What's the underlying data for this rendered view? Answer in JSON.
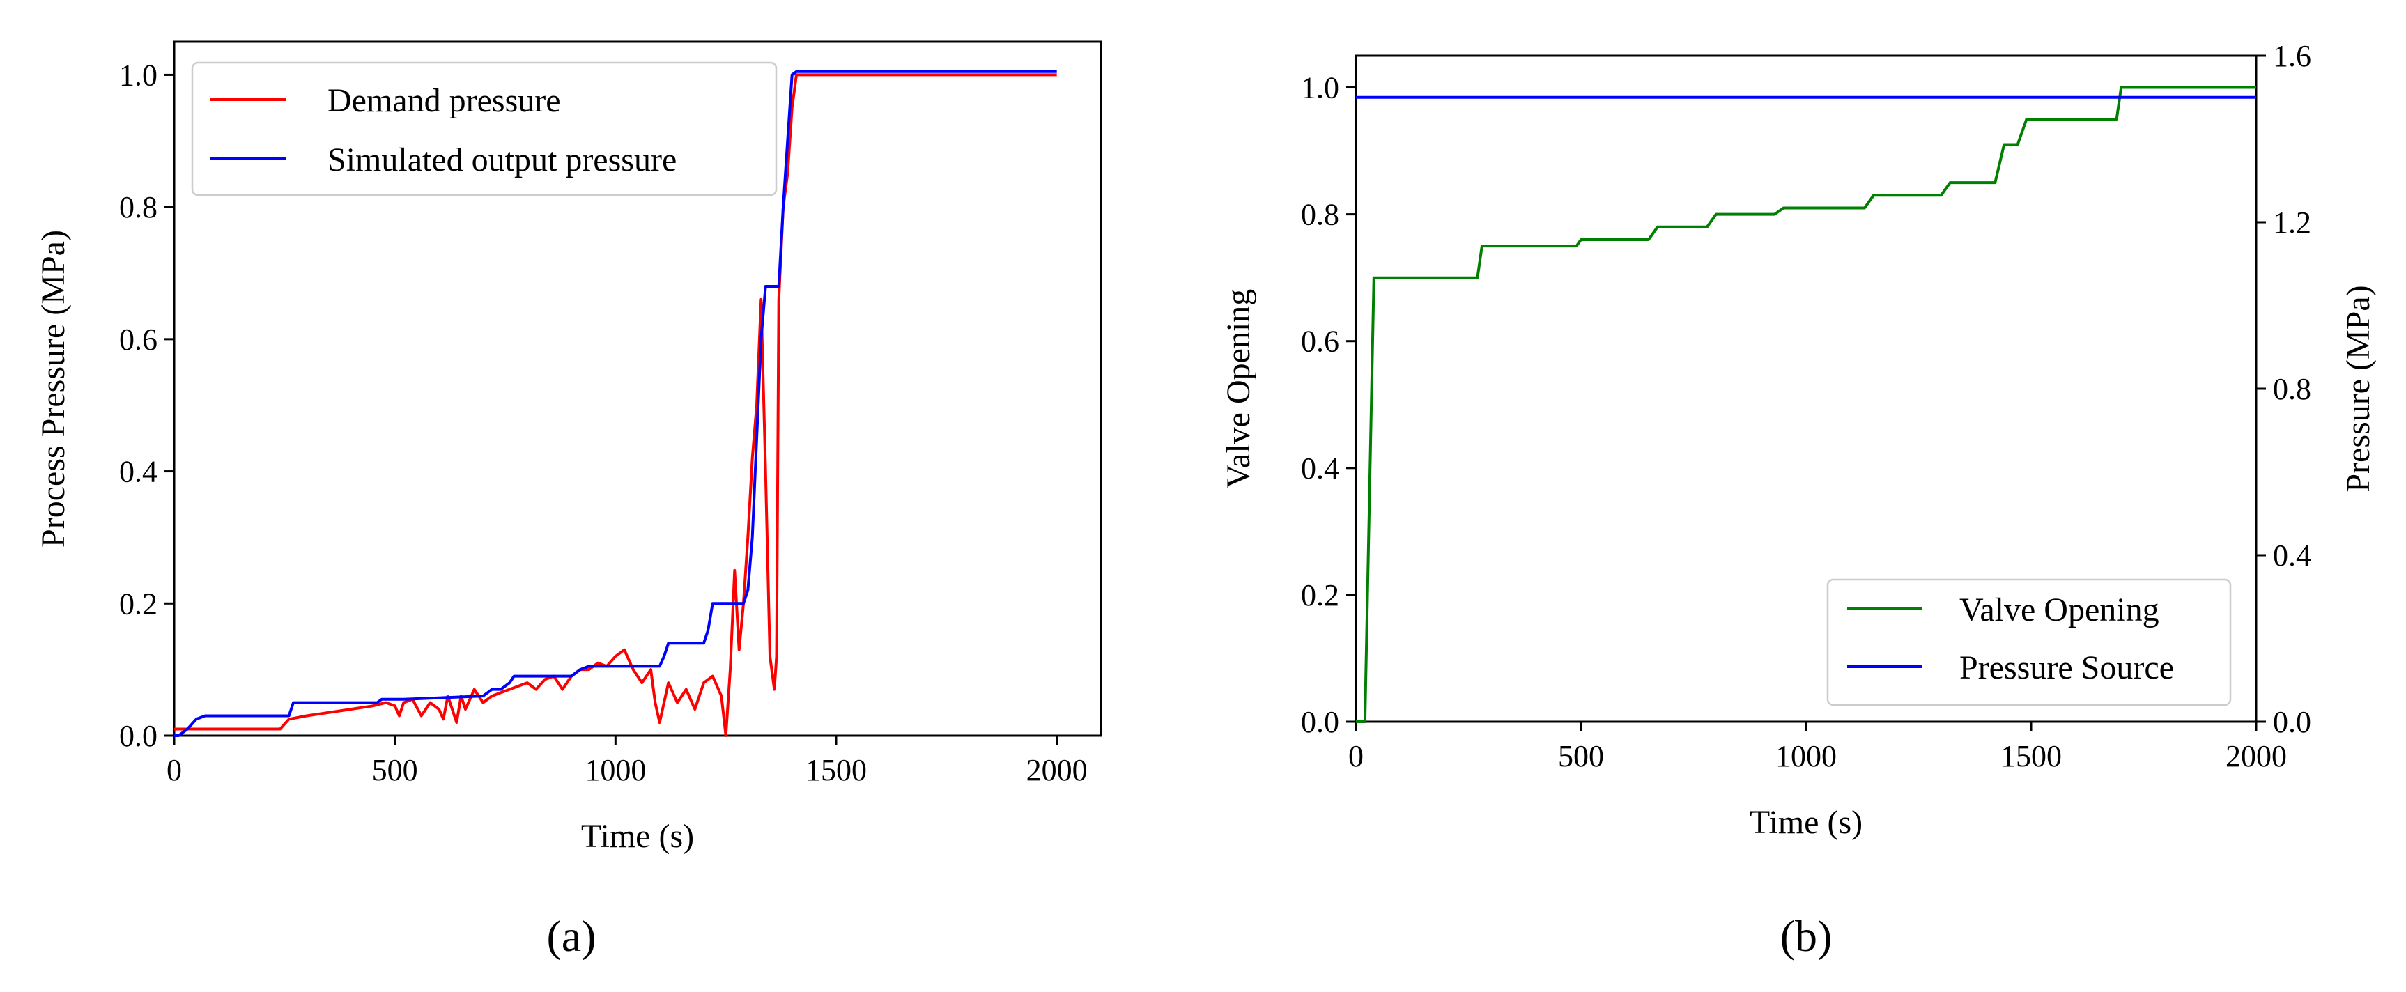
{
  "chart_data": [
    {
      "id": "a",
      "type": "line",
      "caption": "(a)",
      "xlabel": "Time (s)",
      "ylabel": "Process Pressure (MPa)",
      "xlim": [
        0,
        2100
      ],
      "ylim": [
        0,
        1.05
      ],
      "xticks": [
        0,
        500,
        1000,
        1500,
        2000
      ],
      "yticks": [
        0.0,
        0.2,
        0.4,
        0.6,
        0.8,
        1.0
      ],
      "xtick_labels": [
        "0",
        "500",
        "1000",
        "1500",
        "2000"
      ],
      "ytick_labels": [
        "0.0",
        "0.2",
        "0.4",
        "0.6",
        "0.8",
        "1.0"
      ],
      "grid": false,
      "legend_position": "top-left",
      "series": [
        {
          "name": "Demand pressure",
          "color": "#ff0000",
          "x": [
            0,
            20,
            100,
            200,
            240,
            260,
            300,
            350,
            400,
            450,
            480,
            500,
            510,
            520,
            540,
            560,
            580,
            600,
            610,
            620,
            640,
            650,
            660,
            680,
            700,
            720,
            740,
            760,
            780,
            800,
            820,
            840,
            860,
            880,
            900,
            920,
            940,
            960,
            980,
            1000,
            1020,
            1040,
            1060,
            1080,
            1090,
            1100,
            1120,
            1140,
            1160,
            1180,
            1200,
            1220,
            1240,
            1250,
            1260,
            1270,
            1280,
            1290,
            1300,
            1310,
            1320,
            1330,
            1340,
            1350,
            1360,
            1365,
            1370,
            1380,
            1390,
            1400,
            1410,
            1420,
            1500,
            2000
          ],
          "y": [
            0.01,
            0.01,
            0.01,
            0.01,
            0.01,
            0.025,
            0.03,
            0.035,
            0.04,
            0.045,
            0.05,
            0.045,
            0.03,
            0.05,
            0.055,
            0.03,
            0.05,
            0.04,
            0.025,
            0.06,
            0.02,
            0.06,
            0.04,
            0.07,
            0.05,
            0.06,
            0.065,
            0.07,
            0.075,
            0.08,
            0.07,
            0.085,
            0.09,
            0.07,
            0.09,
            0.1,
            0.1,
            0.11,
            0.105,
            0.12,
            0.13,
            0.1,
            0.08,
            0.1,
            0.05,
            0.02,
            0.08,
            0.05,
            0.07,
            0.04,
            0.08,
            0.09,
            0.06,
            0.0,
            0.1,
            0.25,
            0.13,
            0.2,
            0.3,
            0.42,
            0.5,
            0.66,
            0.4,
            0.12,
            0.07,
            0.12,
            0.66,
            0.8,
            0.85,
            0.95,
            1.0,
            1.0,
            1.0,
            1.0
          ]
        },
        {
          "name": "Simulated output pressure",
          "color": "#0000ff",
          "x": [
            0,
            10,
            30,
            50,
            70,
            100,
            200,
            260,
            270,
            280,
            450,
            460,
            470,
            500,
            520,
            700,
            710,
            720,
            740,
            760,
            770,
            780,
            900,
            920,
            940,
            1100,
            1110,
            1120,
            1200,
            1210,
            1220,
            1290,
            1300,
            1310,
            1320,
            1330,
            1340,
            1350,
            1370,
            1380,
            1390,
            1400,
            1410,
            2000
          ],
          "y": [
            0.0,
            0.0,
            0.01,
            0.025,
            0.03,
            0.03,
            0.03,
            0.03,
            0.05,
            0.05,
            0.05,
            0.05,
            0.055,
            0.055,
            0.055,
            0.06,
            0.065,
            0.07,
            0.07,
            0.08,
            0.09,
            0.09,
            0.09,
            0.1,
            0.105,
            0.105,
            0.12,
            0.14,
            0.14,
            0.16,
            0.2,
            0.2,
            0.22,
            0.3,
            0.45,
            0.6,
            0.68,
            0.68,
            0.68,
            0.8,
            0.9,
            1.0,
            1.005,
            1.005
          ]
        }
      ]
    },
    {
      "id": "b",
      "type": "line",
      "caption": "(b)",
      "xlabel": "Time (s)",
      "ylabel": "Valve Opening",
      "ylabel_right": "Pressure (MPa)",
      "xlim": [
        0,
        2000
      ],
      "ylim": [
        0,
        1.05
      ],
      "ylim_right": [
        0,
        1.6
      ],
      "xticks": [
        0,
        500,
        1000,
        1500,
        2000
      ],
      "yticks": [
        0.0,
        0.2,
        0.4,
        0.6,
        0.8,
        1.0
      ],
      "yticks_right": [
        0.0,
        0.4,
        0.8,
        1.2,
        1.6
      ],
      "xtick_labels": [
        "0",
        "500",
        "1000",
        "1500",
        "2000"
      ],
      "ytick_labels": [
        "0.0",
        "0.2",
        "0.4",
        "0.6",
        "0.8",
        "1.0"
      ],
      "ytick_labels_right": [
        "0.0",
        "0.4",
        "0.8",
        "1.2",
        "1.6"
      ],
      "grid": false,
      "legend_position": "bottom-right",
      "series": [
        {
          "name": "Valve Opening",
          "color": "#008000",
          "axis": "left",
          "x": [
            0,
            20,
            40,
            270,
            280,
            490,
            500,
            650,
            670,
            780,
            800,
            930,
            950,
            1130,
            1150,
            1300,
            1320,
            1420,
            1440,
            1470,
            1490,
            1690,
            1700,
            2000
          ],
          "y": [
            0.0,
            0.0,
            0.7,
            0.7,
            0.75,
            0.75,
            0.76,
            0.76,
            0.78,
            0.78,
            0.8,
            0.8,
            0.81,
            0.81,
            0.83,
            0.83,
            0.85,
            0.85,
            0.91,
            0.91,
            0.95,
            0.95,
            1.0,
            1.0
          ]
        },
        {
          "name": "Pressure Source",
          "color": "#0000ff",
          "axis": "right",
          "x": [
            0,
            2000
          ],
          "y": [
            1.5,
            1.5
          ]
        }
      ]
    }
  ]
}
